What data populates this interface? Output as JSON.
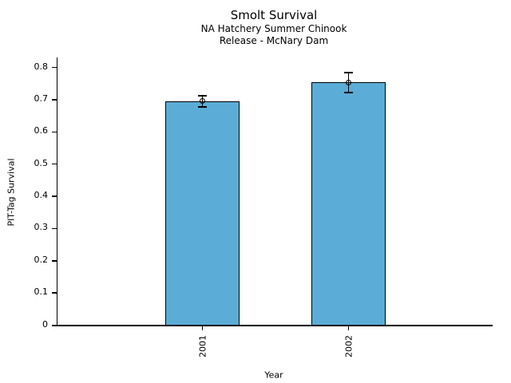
{
  "chart_data": {
    "type": "bar",
    "title": "Smolt Survival",
    "subtitle_lines": [
      "NA Hatchery Summer Chinook",
      "Release - McNary Dam"
    ],
    "xlabel": "Year",
    "ylabel": "PIT-Tag Survival",
    "categories": [
      "2001",
      "2002"
    ],
    "values": [
      0.695,
      0.753
    ],
    "error_bars": [
      0.017,
      0.031
    ],
    "ylim": [
      0,
      0.8
    ],
    "ytick_labels": [
      "0",
      "0.1",
      "0.2",
      "0.3",
      "0.4",
      "0.5",
      "0.6",
      "0.7",
      "0.8"
    ],
    "bar_color": "#5BACD6",
    "bar_edge_color": "#000000",
    "error_color": "#000000",
    "grid": false,
    "legend_position": "none"
  }
}
